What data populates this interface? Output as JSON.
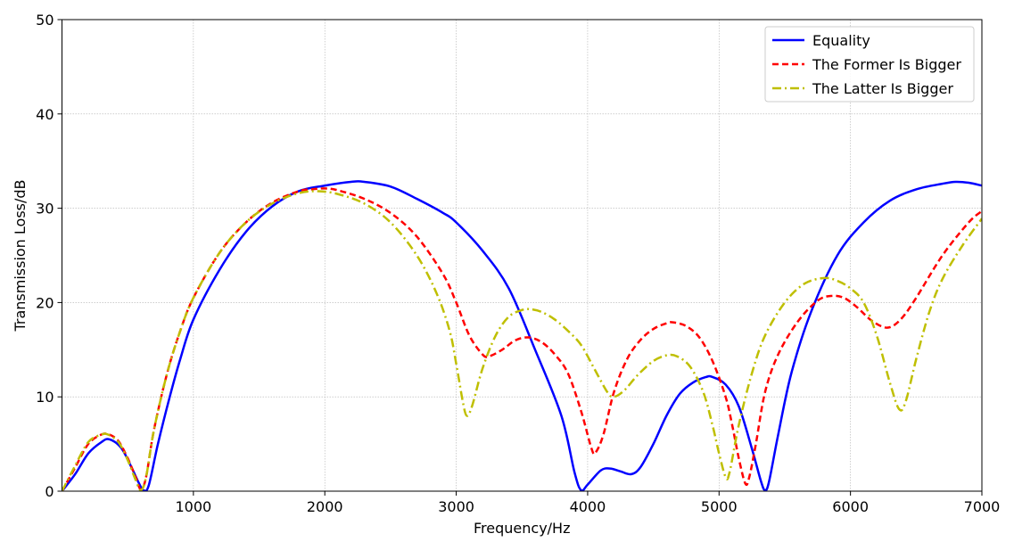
{
  "chart_data": {
    "type": "line",
    "title": "",
    "xlabel": "Frequency/Hz",
    "ylabel": "Transmission Loss/dB",
    "xlim": [
      0,
      7000
    ],
    "ylim": [
      0,
      50
    ],
    "xticks": [
      1000,
      2000,
      3000,
      4000,
      5000,
      6000,
      7000
    ],
    "yticks": [
      0,
      10,
      20,
      30,
      40,
      50
    ],
    "grid": true,
    "legend_position": "top-right",
    "series": [
      {
        "name": "Equality",
        "color": "#0000ff",
        "style": "solid",
        "points": [
          [
            0,
            0
          ],
          [
            100,
            1.8
          ],
          [
            200,
            4
          ],
          [
            300,
            5.2
          ],
          [
            360,
            5.5
          ],
          [
            450,
            4.6
          ],
          [
            530,
            2.5
          ],
          [
            580,
            1
          ],
          [
            620,
            0.1
          ],
          [
            660,
            0.6
          ],
          [
            730,
            5
          ],
          [
            820,
            10
          ],
          [
            900,
            14
          ],
          [
            1000,
            18.2
          ],
          [
            1200,
            23.5
          ],
          [
            1400,
            27.5
          ],
          [
            1600,
            30.2
          ],
          [
            1800,
            31.8
          ],
          [
            2000,
            32.4
          ],
          [
            2200,
            32.8
          ],
          [
            2300,
            32.8
          ],
          [
            2500,
            32.3
          ],
          [
            2700,
            31
          ],
          [
            2900,
            29.5
          ],
          [
            3000,
            28.5
          ],
          [
            3200,
            25.5
          ],
          [
            3400,
            21.5
          ],
          [
            3600,
            15
          ],
          [
            3800,
            8
          ],
          [
            3900,
            2
          ],
          [
            3950,
            0.1
          ],
          [
            4000,
            0.7
          ],
          [
            4100,
            2.2
          ],
          [
            4170,
            2.4
          ],
          [
            4250,
            2.1
          ],
          [
            4330,
            1.8
          ],
          [
            4400,
            2.5
          ],
          [
            4500,
            5
          ],
          [
            4600,
            8
          ],
          [
            4700,
            10.3
          ],
          [
            4800,
            11.5
          ],
          [
            4900,
            12.1
          ],
          [
            4950,
            12.1
          ],
          [
            5050,
            11.3
          ],
          [
            5150,
            9
          ],
          [
            5250,
            4.5
          ],
          [
            5320,
            1
          ],
          [
            5350,
            0.1
          ],
          [
            5380,
            1
          ],
          [
            5450,
            6
          ],
          [
            5550,
            12.5
          ],
          [
            5700,
            19
          ],
          [
            5900,
            25
          ],
          [
            6100,
            28.5
          ],
          [
            6300,
            30.8
          ],
          [
            6500,
            32
          ],
          [
            6700,
            32.6
          ],
          [
            6800,
            32.8
          ],
          [
            6900,
            32.7
          ],
          [
            7000,
            32.4
          ]
        ]
      },
      {
        "name": "The Former Is Bigger",
        "color": "#ff0000",
        "style": "dashed",
        "points": [
          [
            0,
            0
          ],
          [
            100,
            2.5
          ],
          [
            200,
            5
          ],
          [
            300,
            6
          ],
          [
            360,
            6
          ],
          [
            430,
            5.3
          ],
          [
            500,
            3.5
          ],
          [
            560,
            1.5
          ],
          [
            600,
            0.2
          ],
          [
            640,
            1.5
          ],
          [
            700,
            6.5
          ],
          [
            800,
            12.5
          ],
          [
            900,
            17
          ],
          [
            1000,
            20.5
          ],
          [
            1200,
            25.3
          ],
          [
            1400,
            28.5
          ],
          [
            1600,
            30.6
          ],
          [
            1800,
            31.8
          ],
          [
            1900,
            32
          ],
          [
            2000,
            32.1
          ],
          [
            2100,
            31.9
          ],
          [
            2300,
            31
          ],
          [
            2500,
            29.5
          ],
          [
            2700,
            27
          ],
          [
            2900,
            23
          ],
          [
            3000,
            20
          ],
          [
            3100,
            16.5
          ],
          [
            3200,
            14.5
          ],
          [
            3250,
            14.3
          ],
          [
            3350,
            15
          ],
          [
            3450,
            16
          ],
          [
            3550,
            16.3
          ],
          [
            3650,
            15.8
          ],
          [
            3750,
            14.5
          ],
          [
            3850,
            12.5
          ],
          [
            3950,
            8.5
          ],
          [
            4030,
            4.5
          ],
          [
            4060,
            4.1
          ],
          [
            4120,
            6
          ],
          [
            4200,
            10.5
          ],
          [
            4300,
            14
          ],
          [
            4400,
            16
          ],
          [
            4500,
            17.2
          ],
          [
            4600,
            17.8
          ],
          [
            4650,
            17.9
          ],
          [
            4750,
            17.5
          ],
          [
            4850,
            16.3
          ],
          [
            4950,
            13.8
          ],
          [
            5050,
            10
          ],
          [
            5100,
            7
          ],
          [
            5150,
            3.5
          ],
          [
            5200,
            0.8
          ],
          [
            5230,
            1.5
          ],
          [
            5280,
            5
          ],
          [
            5350,
            10.5
          ],
          [
            5450,
            14.5
          ],
          [
            5600,
            18
          ],
          [
            5750,
            20.2
          ],
          [
            5850,
            20.7
          ],
          [
            5950,
            20.5
          ],
          [
            6050,
            19.5
          ],
          [
            6150,
            18.2
          ],
          [
            6250,
            17.4
          ],
          [
            6320,
            17.5
          ],
          [
            6400,
            18.5
          ],
          [
            6500,
            20.5
          ],
          [
            6700,
            25
          ],
          [
            6900,
            28.5
          ],
          [
            7000,
            29.7
          ]
        ]
      },
      {
        "name": "The Latter Is Bigger",
        "color": "#bfbf00",
        "style": "dashdot",
        "points": [
          [
            0,
            0
          ],
          [
            100,
            2.7
          ],
          [
            200,
            5.2
          ],
          [
            300,
            6
          ],
          [
            350,
            6
          ],
          [
            430,
            5.2
          ],
          [
            500,
            3.3
          ],
          [
            560,
            1.2
          ],
          [
            600,
            0.1
          ],
          [
            640,
            1.5
          ],
          [
            700,
            6.5
          ],
          [
            800,
            12.5
          ],
          [
            900,
            17
          ],
          [
            1000,
            20.5
          ],
          [
            1200,
            25.3
          ],
          [
            1400,
            28.5
          ],
          [
            1600,
            30.5
          ],
          [
            1800,
            31.6
          ],
          [
            1950,
            31.8
          ],
          [
            2100,
            31.5
          ],
          [
            2300,
            30.5
          ],
          [
            2500,
            28.5
          ],
          [
            2700,
            25
          ],
          [
            2850,
            21
          ],
          [
            2950,
            17
          ],
          [
            3000,
            13.5
          ],
          [
            3050,
            9.5
          ],
          [
            3080,
            8
          ],
          [
            3120,
            9
          ],
          [
            3200,
            13
          ],
          [
            3300,
            16.5
          ],
          [
            3400,
            18.5
          ],
          [
            3500,
            19.2
          ],
          [
            3560,
            19.3
          ],
          [
            3650,
            19
          ],
          [
            3750,
            18.2
          ],
          [
            3850,
            17
          ],
          [
            3950,
            15.5
          ],
          [
            4050,
            13
          ],
          [
            4150,
            10.5
          ],
          [
            4200,
            10
          ],
          [
            4280,
            10.7
          ],
          [
            4380,
            12.3
          ],
          [
            4500,
            13.8
          ],
          [
            4600,
            14.4
          ],
          [
            4680,
            14.3
          ],
          [
            4780,
            13.2
          ],
          [
            4880,
            10.5
          ],
          [
            4950,
            7
          ],
          [
            5000,
            4
          ],
          [
            5050,
            1.5
          ],
          [
            5080,
            2
          ],
          [
            5150,
            7
          ],
          [
            5250,
            12.5
          ],
          [
            5350,
            16.5
          ],
          [
            5500,
            20
          ],
          [
            5650,
            22
          ],
          [
            5800,
            22.6
          ],
          [
            5900,
            22.3
          ],
          [
            6000,
            21.5
          ],
          [
            6100,
            20
          ],
          [
            6200,
            16.5
          ],
          [
            6300,
            11.5
          ],
          [
            6370,
            8.7
          ],
          [
            6420,
            9.5
          ],
          [
            6500,
            14
          ],
          [
            6600,
            19
          ],
          [
            6700,
            22.5
          ],
          [
            6850,
            26
          ],
          [
            7000,
            28.9
          ]
        ]
      }
    ]
  }
}
